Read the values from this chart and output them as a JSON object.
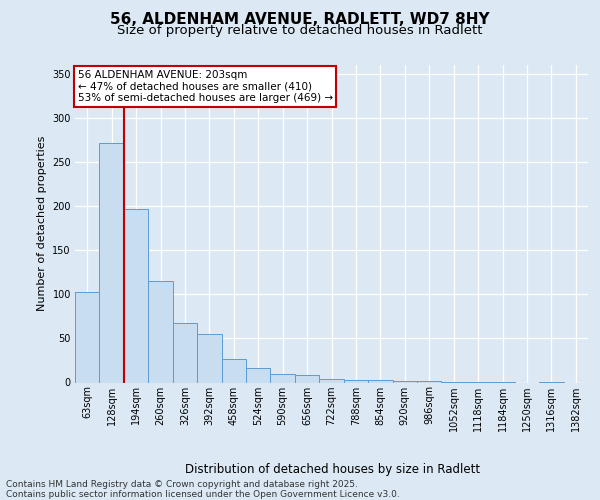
{
  "title_line1": "56, ALDENHAM AVENUE, RADLETT, WD7 8HY",
  "title_line2": "Size of property relative to detached houses in Radlett",
  "xlabel": "Distribution of detached houses by size in Radlett",
  "ylabel": "Number of detached properties",
  "bar_labels": [
    "63sqm",
    "128sqm",
    "194sqm",
    "260sqm",
    "326sqm",
    "392sqm",
    "458sqm",
    "524sqm",
    "590sqm",
    "656sqm",
    "722sqm",
    "788sqm",
    "854sqm",
    "920sqm",
    "986sqm",
    "1052sqm",
    "1118sqm",
    "1184sqm",
    "1250sqm",
    "1316sqm",
    "1382sqm"
  ],
  "bar_values": [
    103,
    272,
    197,
    115,
    67,
    55,
    27,
    17,
    10,
    8,
    4,
    3,
    3,
    2,
    2,
    1,
    1,
    1,
    0,
    1,
    0
  ],
  "bar_color": "#c9ddf0",
  "bar_edge_color": "#5b9bd5",
  "vline_index": 2,
  "vline_color": "#c00000",
  "annotation_title": "56 ALDENHAM AVENUE: 203sqm",
  "annotation_line1": "← 47% of detached houses are smaller (410)",
  "annotation_line2": "53% of semi-detached houses are larger (469) →",
  "annotation_box_edgecolor": "#c00000",
  "ylim": [
    0,
    360
  ],
  "yticks": [
    0,
    50,
    100,
    150,
    200,
    250,
    300,
    350
  ],
  "footer_line1": "Contains HM Land Registry data © Crown copyright and database right 2025.",
  "footer_line2": "Contains public sector information licensed under the Open Government Licence v3.0.",
  "bg_color": "#dce9f5",
  "plot_bg_color": "#dce9f5",
  "grid_color": "#ffffff",
  "title1_fontsize": 11,
  "title2_fontsize": 9.5,
  "ylabel_fontsize": 8,
  "xlabel_fontsize": 8.5,
  "tick_fontsize": 7,
  "footer_fontsize": 6.5,
  "annot_fontsize": 7.5
}
